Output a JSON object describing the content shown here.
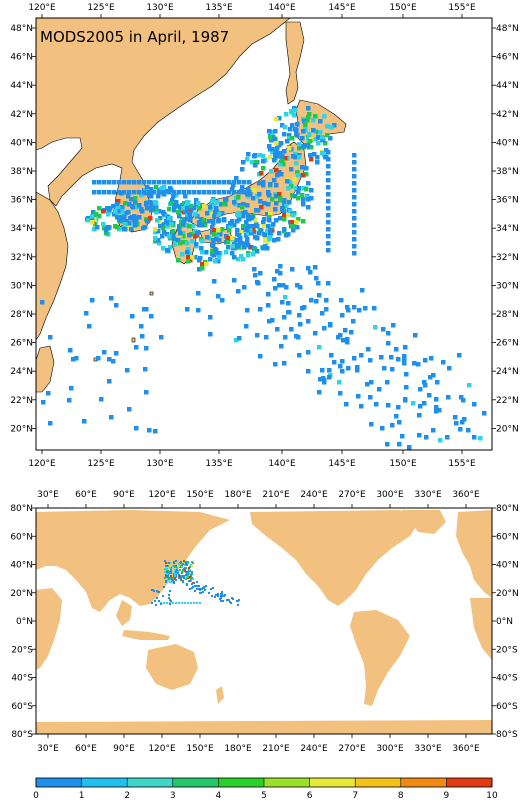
{
  "map_top": {
    "title": "MODS2005 in April, 1987",
    "lon_labels": [
      "120°E",
      "125°E",
      "130°E",
      "135°E",
      "140°E",
      "145°E",
      "150°E",
      "155°E"
    ],
    "lat_labels": [
      "48°N",
      "46°N",
      "44°N",
      "42°N",
      "40°N",
      "38°N",
      "36°N",
      "34°N",
      "32°N",
      "30°N",
      "28°N",
      "26°N",
      "24°N",
      "22°N",
      "20°N"
    ],
    "lon_range": [
      119,
      157
    ],
    "lat_range": [
      18.7,
      49.5
    ],
    "land_color": "#f2c07f",
    "ocean_color": "#ffffff"
  },
  "map_bottom": {
    "lon_labels": [
      "30°E",
      "60°E",
      "90°E",
      "120°E",
      "150°E",
      "180°E",
      "210°E",
      "240°E",
      "270°E",
      "300°E",
      "330°E",
      "360°E"
    ],
    "lat_labels": [
      "80°N",
      "60°N",
      "40°N",
      "20°N",
      "0°N",
      "20°S",
      "40°S",
      "60°S",
      "80°S"
    ],
    "lon_range": [
      20,
      380
    ],
    "lat_range": [
      -80,
      80
    ]
  },
  "colorbar": {
    "ticks": [
      "0",
      "1",
      "2",
      "3",
      "4",
      "5",
      "6",
      "7",
      "8",
      "9",
      "10"
    ],
    "colors": [
      "#1e5fd6",
      "#1f8fec",
      "#1fbff0",
      "#3fd6c8",
      "#22c86a",
      "#2bd12b",
      "#9be12a",
      "#e8e838",
      "#f5c21a",
      "#f08a12",
      "#e03a12"
    ]
  },
  "observations": {
    "palette": {
      "low": "#1f8fec",
      "cyan": "#2fd3e6",
      "green": "#22c84a",
      "yellow": "#e8e838",
      "red": "#e03a12"
    }
  }
}
